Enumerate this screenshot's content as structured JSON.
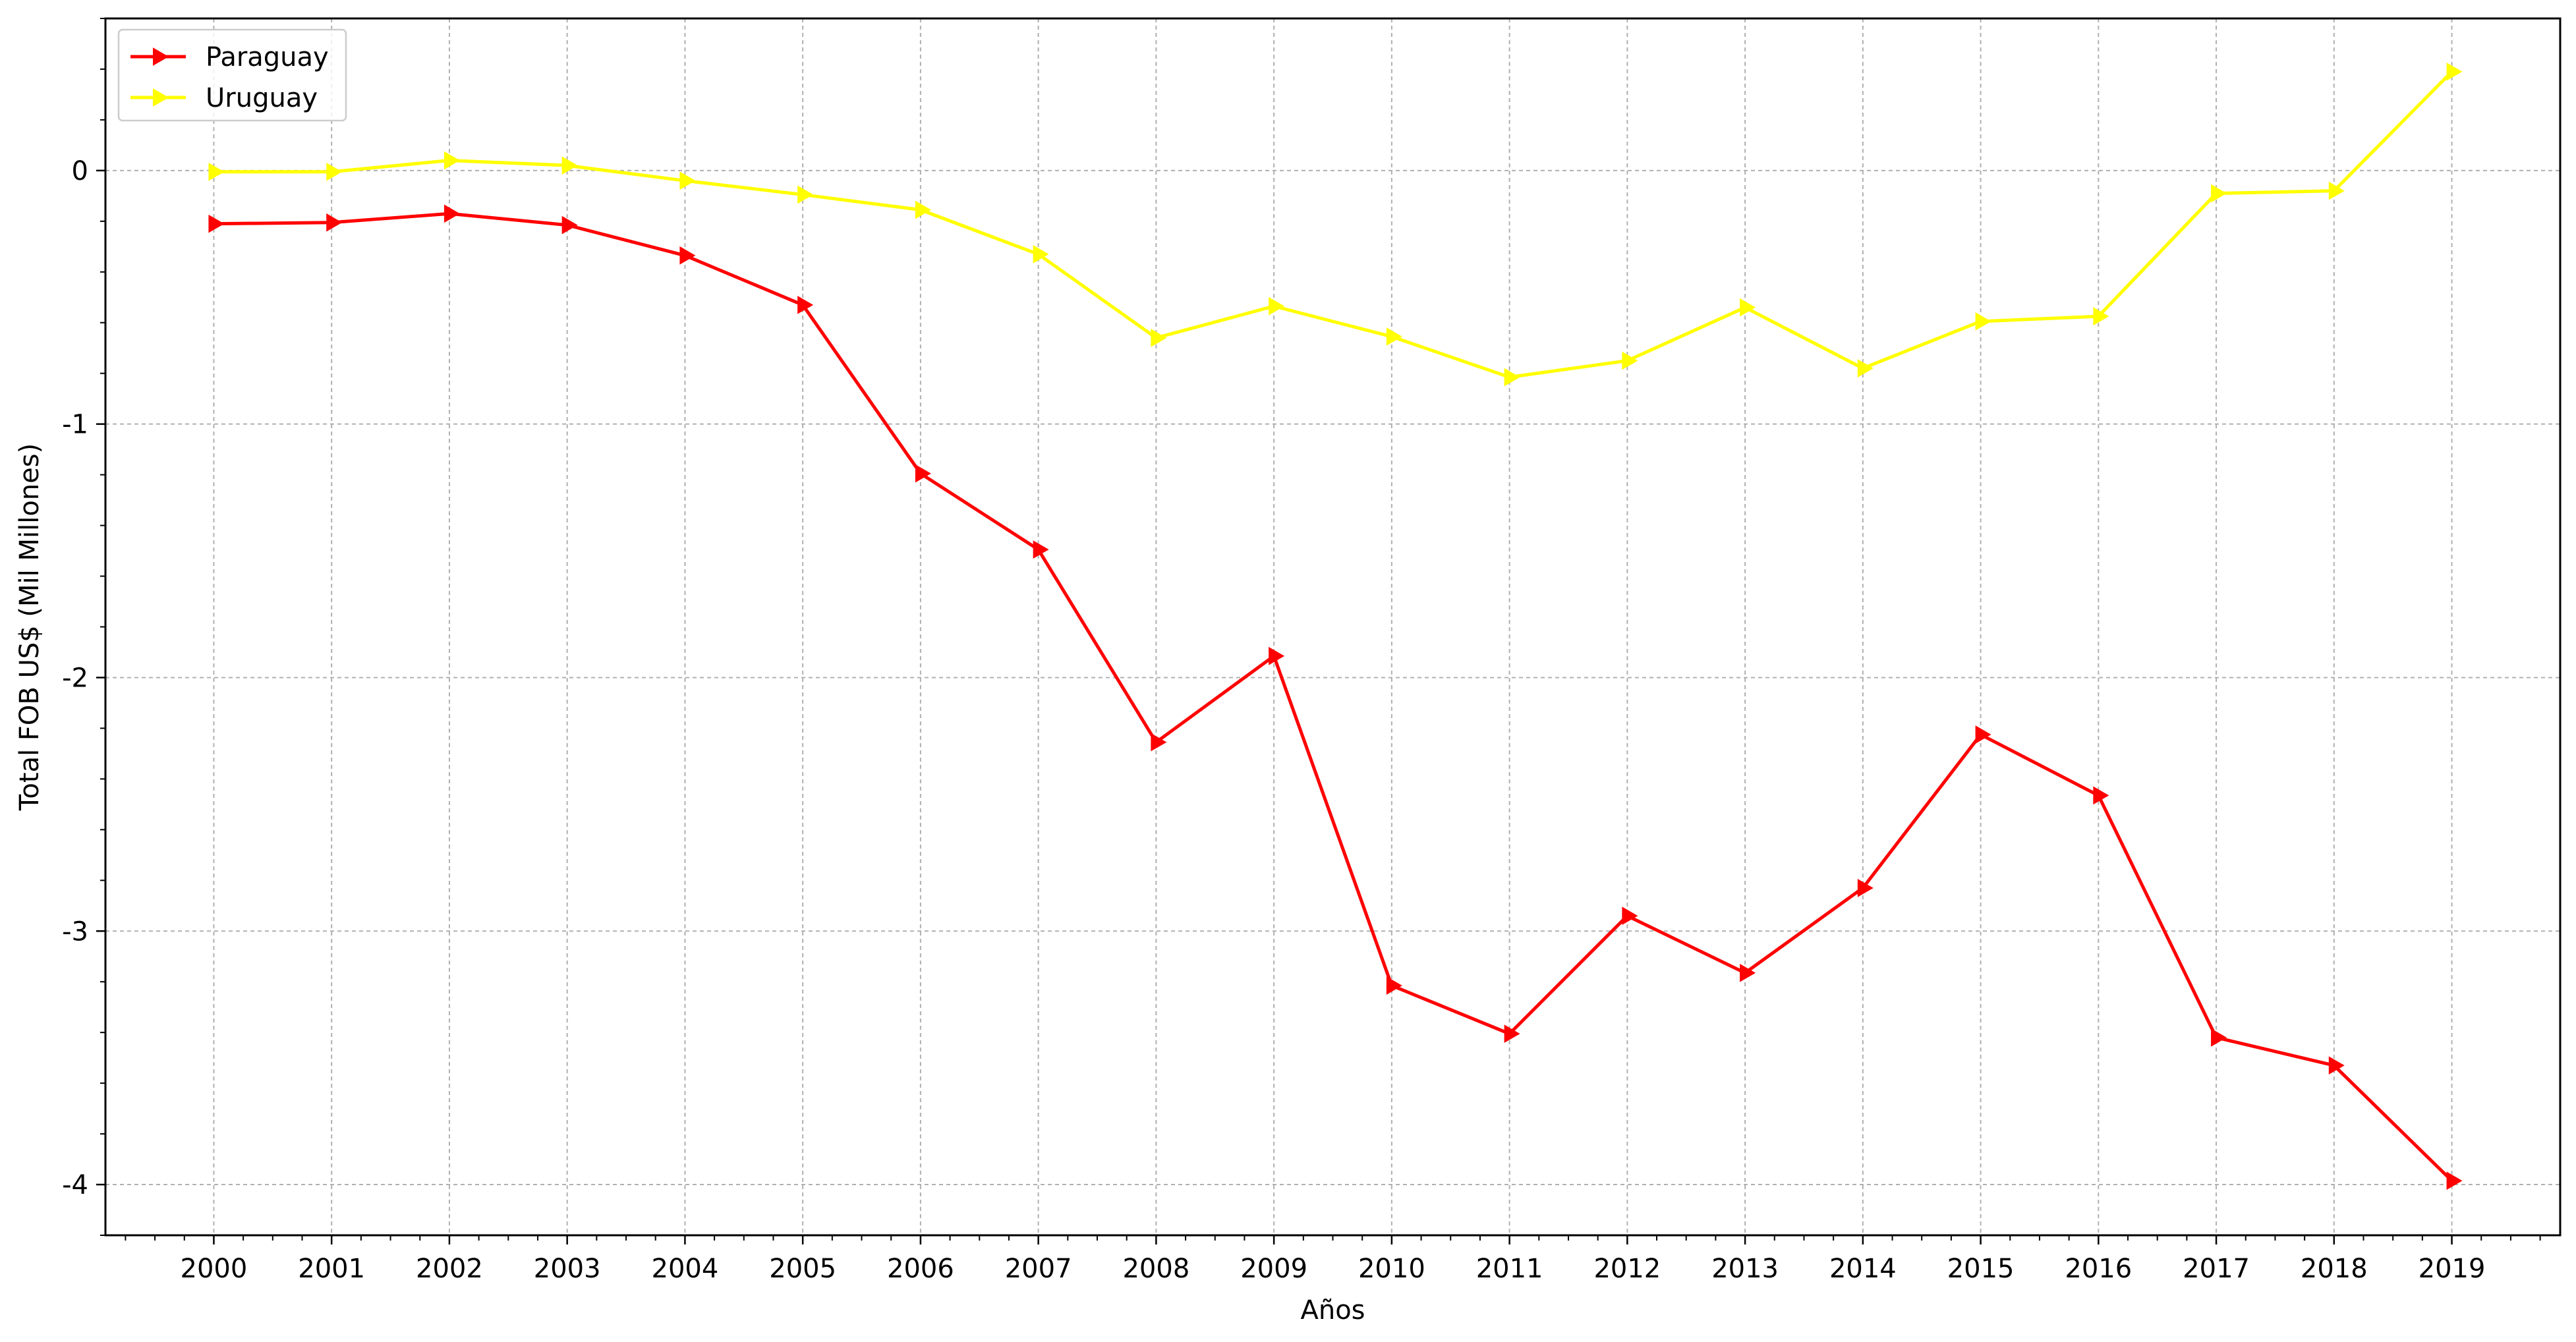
{
  "chart_data": {
    "type": "line",
    "title": "",
    "xlabel": "Años",
    "ylabel": "Total FOB US$ (Mil Millones)",
    "x": [
      2000,
      2001,
      2002,
      2003,
      2004,
      2005,
      2006,
      2007,
      2008,
      2009,
      2010,
      2011,
      2012,
      2013,
      2014,
      2015,
      2016,
      2017,
      2018,
      2019
    ],
    "xlim": [
      1999.08,
      2019.92
    ],
    "ylim": [
      -4.2,
      0.6
    ],
    "yticks": [
      0,
      -1,
      -2,
      -3,
      -4
    ],
    "ytick_labels": [
      "0",
      "-1",
      "-2",
      "-3",
      "-4"
    ],
    "grid": true,
    "legend": "top-left",
    "series": [
      {
        "name": "Paraguay",
        "color": "#ff0000",
        "marker": "triangle-right",
        "values": [
          -0.21,
          -0.205,
          -0.17,
          -0.215,
          -0.335,
          -0.53,
          -1.195,
          -1.495,
          -2.255,
          -1.915,
          -3.215,
          -3.405,
          -2.94,
          -3.165,
          -2.83,
          -2.225,
          -2.465,
          -3.42,
          -3.53,
          -3.985
        ]
      },
      {
        "name": "Uruguay",
        "color": "#ffff00",
        "marker": "triangle-right",
        "values": [
          -0.005,
          -0.005,
          0.04,
          0.02,
          -0.04,
          -0.095,
          -0.155,
          -0.33,
          -0.66,
          -0.535,
          -0.655,
          -0.815,
          -0.75,
          -0.54,
          -0.78,
          -0.595,
          -0.575,
          -0.09,
          -0.08,
          0.39
        ]
      }
    ]
  }
}
